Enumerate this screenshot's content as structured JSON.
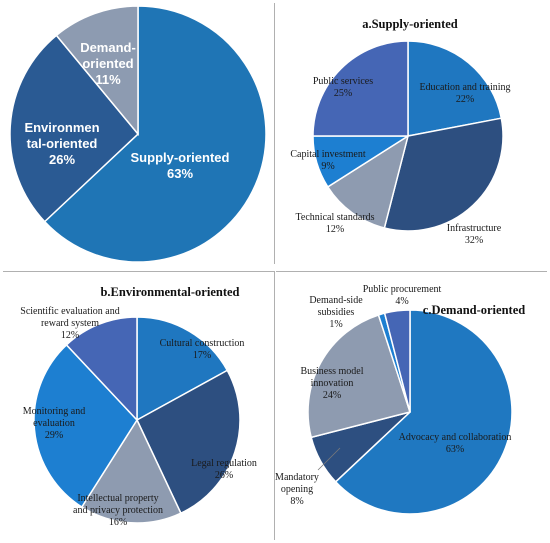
{
  "chart_data": [
    {
      "type": "pie",
      "title": "",
      "slices": [
        {
          "label": "Supply-oriented",
          "value": 63,
          "pct": "63%",
          "color": "#1f75b5"
        },
        {
          "label": "Environmen tal-oriented",
          "value": 26,
          "pct": "26%",
          "color": "#2a5a93"
        },
        {
          "label": "Demand-oriented",
          "value": 11,
          "pct": "11%",
          "color": "#8d9bb1"
        }
      ]
    },
    {
      "type": "pie",
      "title": "a.Supply-oriented",
      "slices": [
        {
          "label": "Education and training",
          "value": 22,
          "pct": "22%",
          "color": "#1f77c0"
        },
        {
          "label": "Infrastructure",
          "value": 32,
          "pct": "32%",
          "color": "#2d4f80"
        },
        {
          "label": "Technical standards",
          "value": 12,
          "pct": "12%",
          "color": "#8e9bb0"
        },
        {
          "label": "Capital investment",
          "value": 9,
          "pct": "9%",
          "color": "#1d7fd1"
        },
        {
          "label": "Public services",
          "value": 25,
          "pct": "25%",
          "color": "#4566b5"
        }
      ]
    },
    {
      "type": "pie",
      "title": "b.Environmental-oriented",
      "slices": [
        {
          "label": "Cultural construction",
          "value": 17,
          "pct": "17%",
          "color": "#1f77c0"
        },
        {
          "label": "Legal regulation",
          "value": 26,
          "pct": "26%",
          "color": "#2d4f80"
        },
        {
          "label": "Intellectual property and privacy protection",
          "value": 16,
          "pct": "16%",
          "color": "#8e9bb0"
        },
        {
          "label": "Monitoring and evaluation",
          "value": 29,
          "pct": "29%",
          "color": "#1d7fd1"
        },
        {
          "label": "Scientific evaluation and reward system",
          "value": 12,
          "pct": "12%",
          "color": "#4566b5"
        }
      ]
    },
    {
      "type": "pie",
      "title": "c.Demand-oriented",
      "slices": [
        {
          "label": "Advocacy and collaboration",
          "value": 63,
          "pct": "63%",
          "color": "#1f78c1"
        },
        {
          "label": "Mandatory opening",
          "value": 8,
          "pct": "8%",
          "color": "#2d4f80"
        },
        {
          "label": "Business model innovation",
          "value": 24,
          "pct": "24%",
          "color": "#8e9bb0"
        },
        {
          "label": "Demand-side subsidies",
          "value": 1,
          "pct": "1%",
          "color": "#1d7fd1"
        },
        {
          "label": "Public procurement",
          "value": 4,
          "pct": "4%",
          "color": "#4566b5"
        }
      ]
    }
  ]
}
